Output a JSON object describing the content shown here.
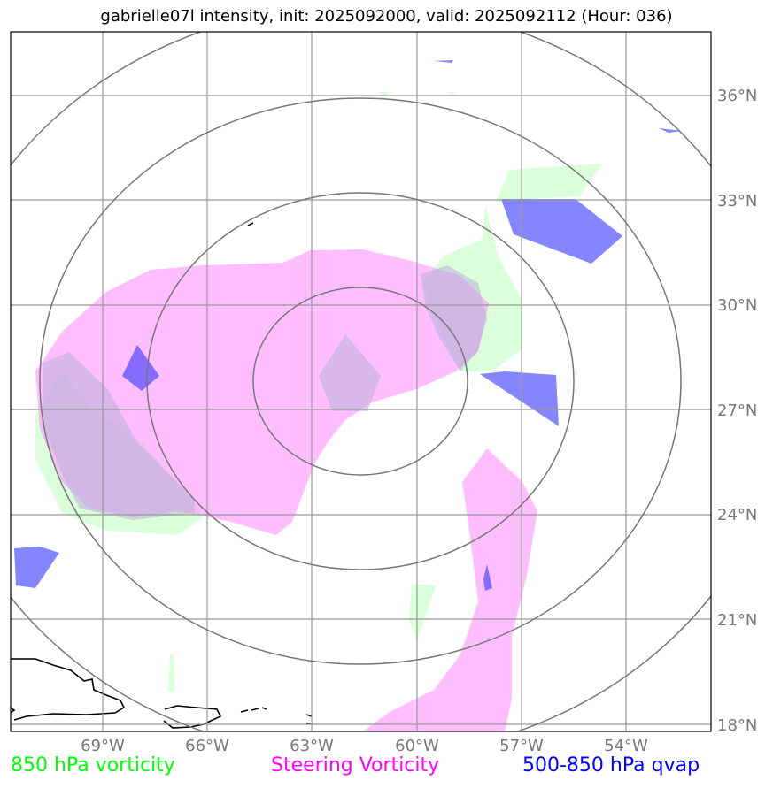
{
  "title": "gabrielle07l intensity, init: 2025092000, valid: 2025092112 (Hour: 036)",
  "map": {
    "storm_id": "gabrielle07l",
    "init": "2025092000",
    "valid": "2025092112",
    "forecast_hour": "036",
    "latitude_labels": [
      "36°N",
      "33°N",
      "30°N",
      "27°N",
      "24°N",
      "21°N",
      "18°N"
    ],
    "longitude_labels": [
      "69°W",
      "66°W",
      "63°W",
      "60°W",
      "57°W",
      "54°W"
    ],
    "range_rings": 4,
    "colors": {
      "vort850": "#00ff00",
      "steering": "#ff00ff",
      "qvap": "#0000ff",
      "grid": "#808080",
      "coast": "#000000"
    }
  },
  "legend": [
    {
      "label": "850 hPa vorticity",
      "color": "#00ff00"
    },
    {
      "label": "Steering Vorticity",
      "color": "#ff00ff"
    },
    {
      "label": "500-850 hPa qvap",
      "color": "#0000ff"
    }
  ]
}
